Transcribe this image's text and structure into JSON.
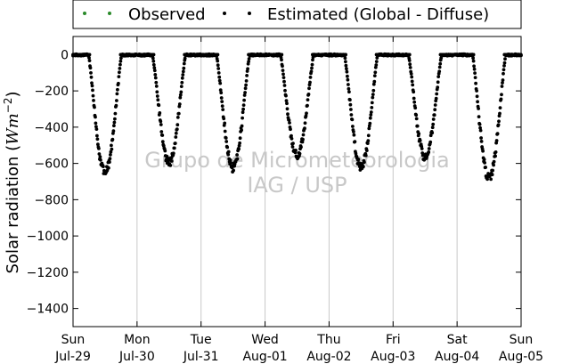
{
  "chart_data": {
    "type": "scatter",
    "title": "",
    "xlabel": "",
    "ylabel": "Solar radiation (Wm⁻²)",
    "ylabel_parts": {
      "main": "Solar radiation (",
      "italic": "Wm",
      "sup": "−2",
      "close": ")"
    },
    "ylim": [
      -1500,
      100
    ],
    "yticks": [
      0,
      -200,
      -400,
      -600,
      -800,
      -1000,
      -1200,
      -1400
    ],
    "xlim_days": [
      0,
      7
    ],
    "xticks": [
      {
        "day": "Sun",
        "date": "Jul-29"
      },
      {
        "day": "Mon",
        "date": "Jul-30"
      },
      {
        "day": "Tue",
        "date": "Jul-31"
      },
      {
        "day": "Wed",
        "date": "Aug-01"
      },
      {
        "day": "Thu",
        "date": "Aug-02"
      },
      {
        "day": "Fri",
        "date": "Aug-03"
      },
      {
        "day": "Sat",
        "date": "Aug-04"
      },
      {
        "day": "Sun",
        "date": "Aug-05"
      }
    ],
    "grid": "vertical",
    "legend": {
      "placement": "top"
    },
    "series": [
      {
        "name": "Observed",
        "color": "#2a8a2a",
        "marker": "dot",
        "points": []
      },
      {
        "name": "Estimated (Global - Diffuse)",
        "color": "#000000",
        "marker": "dot",
        "daily_minima": [
          {
            "date": "Jul-29",
            "value": -660
          },
          {
            "date": "Jul-30",
            "value": -600
          },
          {
            "date": "Jul-31",
            "value": -630
          },
          {
            "date": "Aug-01",
            "value": -560
          },
          {
            "date": "Aug-02",
            "value": -630
          },
          {
            "date": "Aug-03",
            "value": -570
          },
          {
            "date": "Aug-04",
            "value": -690
          }
        ]
      }
    ],
    "watermark": [
      "Grupo de Micrometeorologia",
      "IAG / USP"
    ]
  }
}
